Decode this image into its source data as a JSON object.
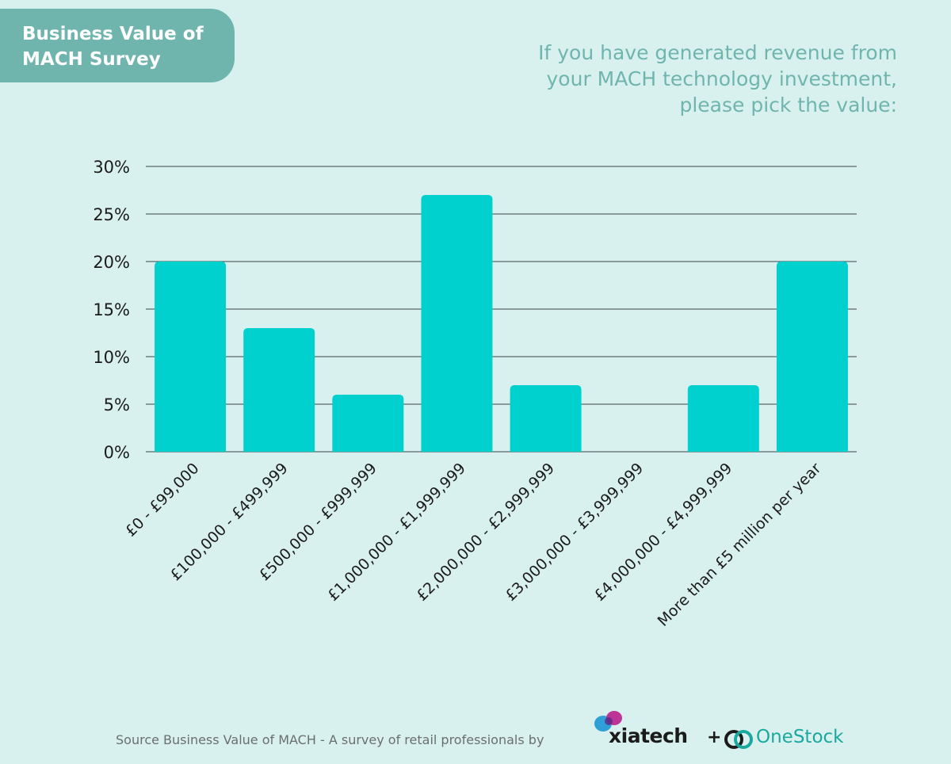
{
  "header": {
    "title_lines": [
      "Business Value of",
      "MACH Survey"
    ],
    "question_lines": [
      "If you have generated revenue from",
      "your MACH technology investment,",
      "please pick the value:"
    ]
  },
  "chart_data": {
    "type": "bar",
    "categories": [
      "£0 - £99,000",
      "£100,000 - £499,999",
      "£500,000 - £999,999",
      "£1,000,000 - £1,999,999",
      "£2,000,000 - £2,999,999",
      "£3,000,000 - £3,999,999",
      "£4,000,000 - £4,999,999",
      "More than £5 million per year"
    ],
    "values": [
      20,
      13,
      6,
      27,
      7,
      0,
      7,
      20
    ],
    "ylim": [
      0,
      30
    ],
    "yticks": [
      0,
      5,
      10,
      15,
      20,
      25,
      30
    ],
    "ytick_suffix": "%",
    "grid": true,
    "bar_color": "#00d1cf",
    "grid_color": "#3a4545"
  },
  "footer": {
    "source_text": "Source Business Value of MACH - A survey of retail professionals by",
    "plus": "+"
  },
  "logos": {
    "xiatech": "xiatech",
    "onestock": "OneStock"
  },
  "colors": {
    "background": "#d9f1ee",
    "accent": "#6fb5ae"
  }
}
